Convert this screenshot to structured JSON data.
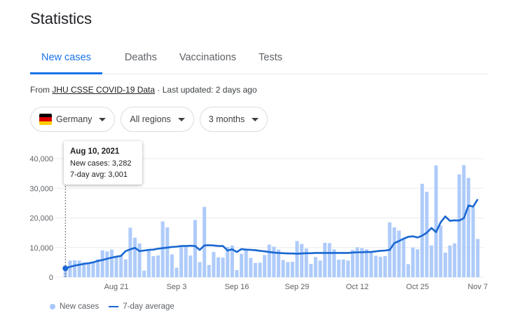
{
  "page": {
    "title": "Statistics"
  },
  "tabs": [
    {
      "label": "New cases",
      "active": true
    },
    {
      "label": "Deaths"
    },
    {
      "label": "Vaccinations"
    },
    {
      "label": "Tests"
    }
  ],
  "source": {
    "prefix": "From ",
    "link": "JHU CSSE COVID-19 Data",
    "updated": " · Last updated: 2 days ago"
  },
  "filters": {
    "country": "Germany",
    "region": "All regions",
    "range": "3 months"
  },
  "tooltip": {
    "date": "Aug 10, 2021",
    "new_cases": "New cases: 3,282",
    "avg": "7-day avg: 3,001"
  },
  "legend": {
    "bars": "New cases",
    "line": "7-day average"
  },
  "colors": {
    "accent": "#1a73e8",
    "bar": "#aecbfa",
    "line": "#1967d2"
  },
  "chart_data": {
    "type": "bar",
    "title": "",
    "xlabel": "",
    "ylabel": "",
    "ylim": [
      0,
      40000
    ],
    "yticks": [
      "0",
      "10,000",
      "20,000",
      "30,000",
      "40,000"
    ],
    "yticks_values": [
      0,
      10000,
      20000,
      30000,
      40000
    ],
    "xticks": [
      "Aug 21",
      "Sep 3",
      "Sep 16",
      "Sep 29",
      "Oct 12",
      "Oct 25",
      "Nov 7"
    ],
    "xticks_index": [
      11,
      24,
      37,
      50,
      63,
      76,
      89
    ],
    "start_date": "Aug 10, 2021",
    "series": [
      {
        "name": "New cases",
        "type": "bar",
        "values": [
          3282,
          5600,
          5700,
          5600,
          5000,
          4900,
          5100,
          6000,
          9100,
          8700,
          9300,
          7200,
          7300,
          6000,
          16700,
          13300,
          11400,
          2200,
          8900,
          7100,
          7300,
          18800,
          16800,
          7700,
          3200,
          10500,
          10800,
          7300,
          19300,
          5100,
          23700,
          4100,
          8500,
          6700,
          6600,
          10200,
          10700,
          2400,
          7900,
          9200,
          6500,
          4800,
          4900,
          7500,
          11000,
          10300,
          9300,
          5800,
          5100,
          5200,
          12200,
          11200,
          9700,
          4500,
          6800,
          5600,
          11600,
          11500,
          9400,
          5900,
          6000,
          5600,
          9200,
          10100,
          9800,
          9400,
          8300,
          7200,
          6900,
          7100,
          18500,
          16800,
          15700,
          13000,
          4400,
          10000,
          9400,
          31500,
          28800,
          10700,
          37700,
          17400,
          8300,
          10700,
          11400,
          34700,
          37800,
          33500,
          23600,
          12900
        ],
        "color": "#aecbfa"
      },
      {
        "name": "7-day average",
        "type": "line",
        "values": [
          3001,
          3500,
          3900,
          4200,
          4500,
          4700,
          5000,
          5500,
          5800,
          6200,
          6600,
          6900,
          7200,
          8800,
          9400,
          9900,
          8800,
          9000,
          9200,
          9300,
          9600,
          9800,
          10000,
          10200,
          10300,
          10500,
          10500,
          10600,
          10500,
          9200,
          10700,
          10800,
          10700,
          10500,
          10500,
          9000,
          9400,
          8500,
          9500,
          9300,
          9200,
          9100,
          8900,
          8700,
          8500,
          8300,
          8200,
          8100,
          8000,
          8000,
          7900,
          8000,
          8100,
          8100,
          8200,
          8200,
          8200,
          8200,
          8200,
          8200,
          8200,
          8200,
          8300,
          8400,
          8400,
          8500,
          8500,
          8700,
          8900,
          9000,
          9200,
          11500,
          12200,
          13000,
          13600,
          13800,
          13400,
          14000,
          15000,
          16600,
          15200,
          18500,
          20500,
          19000,
          19200,
          19100,
          19900,
          24200,
          23800,
          26300
        ],
        "color": "#1967d2"
      }
    ],
    "grid": true,
    "legend_position": "bottom-left"
  }
}
